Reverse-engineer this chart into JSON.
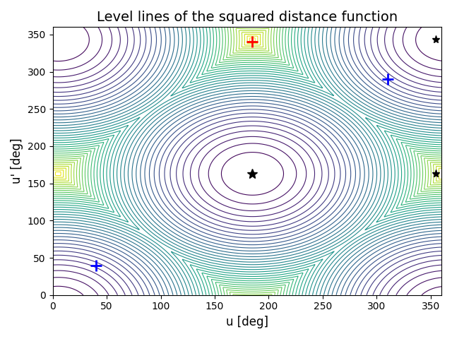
{
  "title": "Level lines of the squared distance function",
  "xlabel": "u [deg]",
  "ylabel": "u' [deg]",
  "xlim": [
    0,
    360
  ],
  "ylim": [
    0,
    360
  ],
  "xticks": [
    0,
    50,
    100,
    150,
    200,
    250,
    300,
    350
  ],
  "yticks": [
    0,
    50,
    100,
    150,
    200,
    250,
    300,
    350
  ],
  "n_contours": 40,
  "star_x": 185,
  "star_y": 163,
  "star2_x": 355,
  "star2_y": 343,
  "star3_x": 355,
  "star3_y": 163,
  "red_plus_x": 185,
  "red_plus_y": 340,
  "blue_plus1_x": 40,
  "blue_plus1_y": 40,
  "blue_plus2_x": 310,
  "blue_plus2_y": 290,
  "colormap": "viridis",
  "figsize": [
    6.4,
    4.8
  ],
  "dpi": 100,
  "title_fontsize": 14,
  "ref_u": 185,
  "ref_up": 163
}
